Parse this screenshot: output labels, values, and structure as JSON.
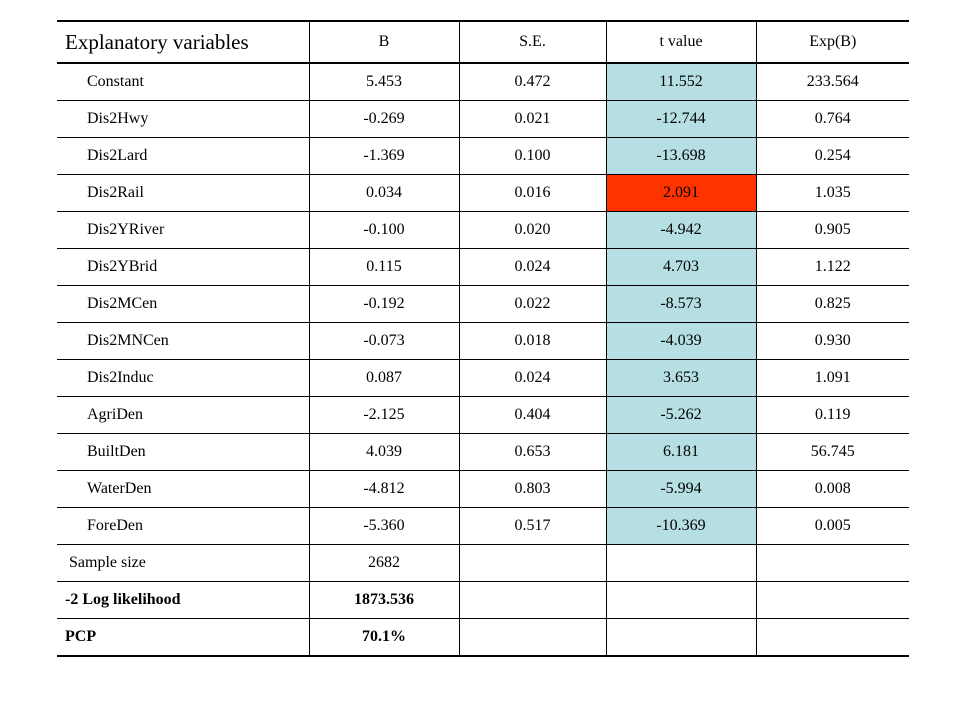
{
  "header": {
    "variable": "Explanatory variables",
    "b": "B",
    "se": "S.E.",
    "t": "t value",
    "expb": "Exp(B)"
  },
  "rows": [
    {
      "variable": "Constant",
      "b": "5.453",
      "se": "0.472",
      "t": "11.552",
      "expb": "233.564"
    },
    {
      "variable": "Dis2Hwy",
      "b": "-0.269",
      "se": "0.021",
      "t": "-12.744",
      "expb": "0.764"
    },
    {
      "variable": "Dis2Lard",
      "b": "-1.369",
      "se": "0.100",
      "t": "-13.698",
      "expb": "0.254"
    },
    {
      "variable": "Dis2Rail",
      "b": "0.034",
      "se": "0.016",
      "t": "2.091",
      "expb": "1.035"
    },
    {
      "variable": "Dis2YRiver",
      "b": "-0.100",
      "se": "0.020",
      "t": "-4.942",
      "expb": "0.905"
    },
    {
      "variable": "Dis2YBrid",
      "b": "0.115",
      "se": "0.024",
      "t": "4.703",
      "expb": "1.122"
    },
    {
      "variable": "Dis2MCen",
      "b": "-0.192",
      "se": "0.022",
      "t": "-8.573",
      "expb": "0.825"
    },
    {
      "variable": "Dis2MNCen",
      "b": "-0.073",
      "se": "0.018",
      "t": "-4.039",
      "expb": "0.930"
    },
    {
      "variable": "Dis2Induc",
      "b": "0.087",
      "se": "0.024",
      "t": "3.653",
      "expb": "1.091"
    },
    {
      "variable": "AgriDen",
      "b": "-2.125",
      "se": "0.404",
      "t": "-5.262",
      "expb": "0.119"
    },
    {
      "variable": "BuiltDen",
      "b": "4.039",
      "se": "0.653",
      "t": "6.181",
      "expb": "56.745"
    },
    {
      "variable": "WaterDen",
      "b": "-4.812",
      "se": "0.803",
      "t": "-5.994",
      "expb": "0.008"
    },
    {
      "variable": "ForeDen",
      "b": "-5.360",
      "se": "0.517",
      "t": "-10.369",
      "expb": "0.005"
    }
  ],
  "summary": [
    {
      "label": "Sample size",
      "value": "2682"
    },
    {
      "label": "-2 Log likelihood",
      "value": "1873.536"
    },
    {
      "label": "PCP",
      "value": "70.1%"
    }
  ],
  "colors": {
    "t_highlight": "#b5dfe3",
    "t_alert": "#ff3300"
  }
}
